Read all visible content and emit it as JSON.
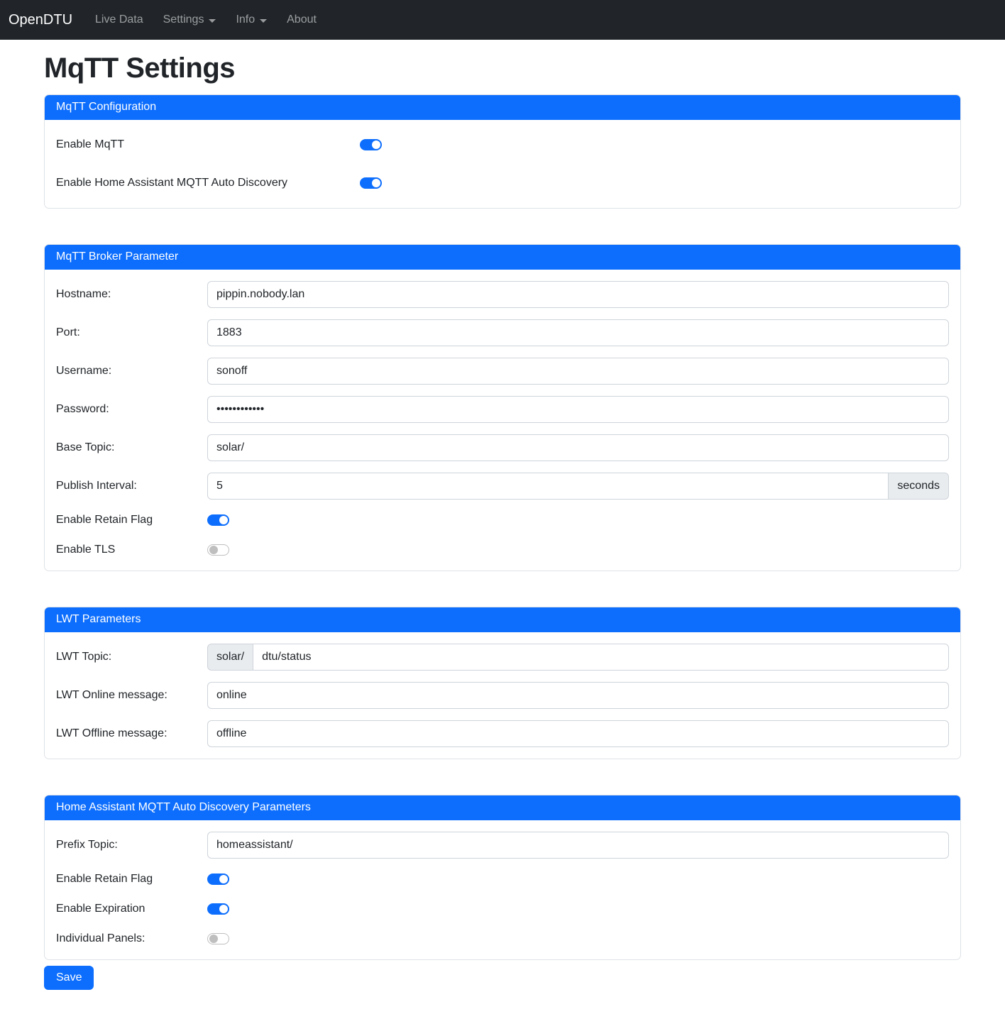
{
  "navbar": {
    "brand": "OpenDTU",
    "items": [
      {
        "label": "Live Data",
        "has_dropdown": false
      },
      {
        "label": "Settings",
        "has_dropdown": true
      },
      {
        "label": "Info",
        "has_dropdown": true
      },
      {
        "label": "About",
        "has_dropdown": false
      }
    ]
  },
  "page_title": "MqTT Settings",
  "colors": {
    "primary": "#0d6efd",
    "navbar_bg": "#212529",
    "addon_bg": "#e9ecef",
    "input_border": "#ced4da",
    "card_border": "#dee2e6"
  },
  "cards": {
    "mqtt_configuration": {
      "title": "MqTT Configuration",
      "enable_mqtt": {
        "label": "Enable MqTT",
        "value": true
      },
      "enable_hass_discovery": {
        "label": "Enable Home Assistant MQTT Auto Discovery",
        "value": true
      }
    },
    "broker": {
      "title": "MqTT Broker Parameter",
      "hostname": {
        "label": "Hostname:",
        "value": "pippin.nobody.lan"
      },
      "port": {
        "label": "Port:",
        "value": "1883"
      },
      "username": {
        "label": "Username:",
        "value": "sonoff"
      },
      "password": {
        "label": "Password:",
        "value": "••••••••••••"
      },
      "base_topic": {
        "label": "Base Topic:",
        "value": "solar/"
      },
      "publish_interval": {
        "label": "Publish Interval:",
        "value": "5",
        "suffix": "seconds"
      },
      "retain": {
        "label": "Enable Retain Flag",
        "value": true
      },
      "tls": {
        "label": "Enable TLS",
        "value": false
      }
    },
    "lwt": {
      "title": "LWT Parameters",
      "topic": {
        "label": "LWT Topic:",
        "prefix": "solar/",
        "value": "dtu/status"
      },
      "online": {
        "label": "LWT Online message:",
        "value": "online"
      },
      "offline": {
        "label": "LWT Offline message:",
        "value": "offline"
      }
    },
    "hass": {
      "title": "Home Assistant MQTT Auto Discovery Parameters",
      "prefix_topic": {
        "label": "Prefix Topic:",
        "value": "homeassistant/"
      },
      "retain": {
        "label": "Enable Retain Flag",
        "value": true
      },
      "expiration": {
        "label": "Enable Expiration",
        "value": true
      },
      "individual_panels": {
        "label": "Individual Panels:",
        "value": false
      }
    }
  },
  "save_button": {
    "label": "Save"
  }
}
